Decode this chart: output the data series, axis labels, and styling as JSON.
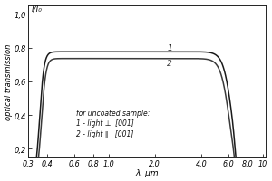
{
  "ylabel": "optical transmission",
  "xlabel": "λ, μm",
  "y_label_top": "I/I₀",
  "ylim": [
    0.15,
    1.05
  ],
  "yticks": [
    0.2,
    0.4,
    0.6,
    0.8,
    1.0
  ],
  "ytick_labels": [
    "0,2",
    "0,4",
    "0,6",
    "0,8",
    "1,0"
  ],
  "xtick_positions": [
    0.3,
    0.4,
    0.6,
    0.8,
    1.0,
    2.0,
    4.0,
    6.0,
    8.0,
    10.0
  ],
  "xtick_labels": [
    "0,3",
    "0,4",
    "0,6",
    "0,8",
    "1,0",
    "2,0",
    "4,0",
    "6,0",
    "8,0",
    "10"
  ],
  "line1_color": "#1a1a1a",
  "line2_color": "#3a3a3a",
  "background_color": "#ffffff",
  "annotation": "for uncoated sample:\n1 - light ⊥  [001]\n2 - light ∥   [001]",
  "label1": "1",
  "label2": "2",
  "curve1_flat": 0.775,
  "curve2_flat": 0.735,
  "curve1_uv": 0.358,
  "curve2_uv": 0.368,
  "curve1_ir": 6.35,
  "curve2_ir": 6.1,
  "uv_steepness": 70,
  "ir_steepness": 35
}
